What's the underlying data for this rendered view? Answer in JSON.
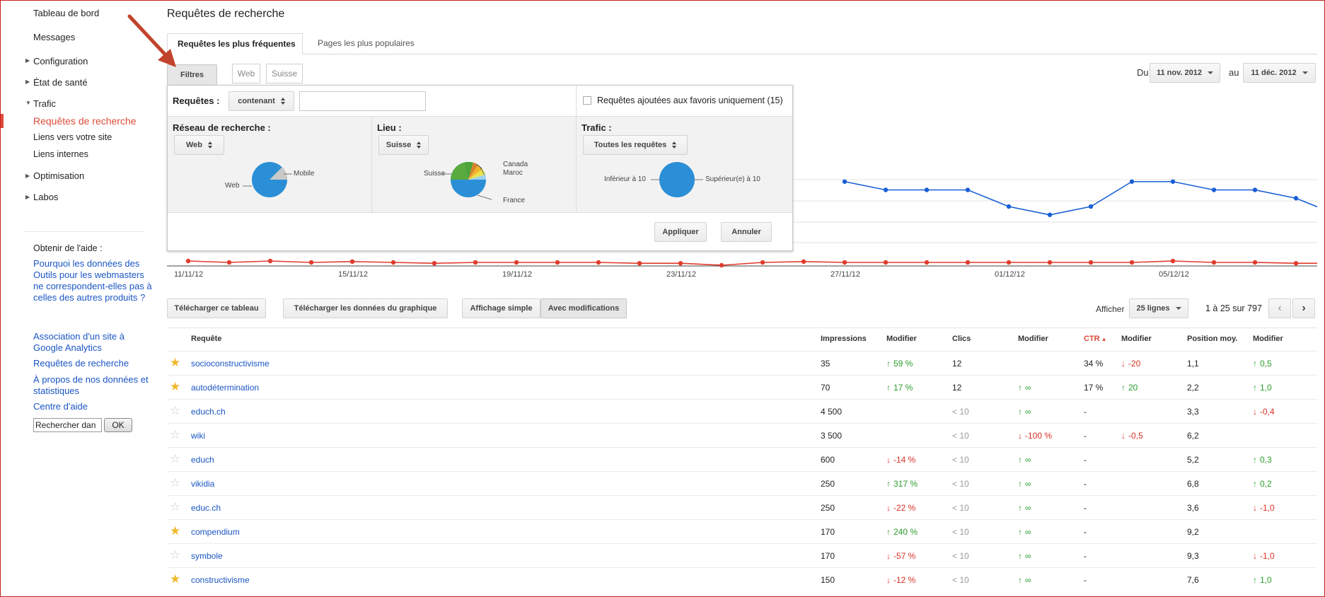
{
  "sidebar": {
    "items": [
      {
        "label": "Tableau de bord"
      },
      {
        "label": "Messages"
      },
      {
        "label": "Configuration"
      },
      {
        "label": "État de santé"
      },
      {
        "label": "Trafic"
      },
      {
        "label": "Optimisation"
      },
      {
        "label": "Labos"
      }
    ],
    "trafic_sub": [
      {
        "label": "Requêtes de recherche",
        "active": true
      },
      {
        "label": "Liens vers votre site"
      },
      {
        "label": "Liens internes"
      }
    ],
    "help": {
      "heading": "Obtenir de l'aide :",
      "links": [
        "Pourquoi les données des Outils pour les webmasters ne correspondent-elles pas à celles des autres produits ?",
        "Association d'un site à Google Analytics",
        "Requêtes de recherche",
        "À propos de nos données et statistiques",
        "Centre d'aide"
      ],
      "search_value": "Rechercher dan",
      "ok_label": "OK"
    }
  },
  "page_title": "Requêtes de recherche",
  "tabs": [
    {
      "label": "Requêtes les plus fréquentes",
      "active": true
    },
    {
      "label": "Pages les plus populaires",
      "active": false
    }
  ],
  "filters": {
    "button_label": "Filtres",
    "chip_web": "Web",
    "chip_suisse": "Suisse"
  },
  "date_range": {
    "from_label": "Du",
    "from": "11 nov. 2012",
    "to_label": "au",
    "to": "11 déc. 2012"
  },
  "filter_panel": {
    "requetes_label": "Requêtes :",
    "requetes_select": "contenant",
    "requetes_input": "",
    "favorites_label": "Requêtes ajoutées aux favoris uniquement (15)",
    "reseau": {
      "label": "Réseau de recherche :",
      "select": "Web",
      "pie_labels": [
        "Web",
        "Mobile"
      ]
    },
    "lieu": {
      "label": "Lieu :",
      "select": "Suisse",
      "pie_labels": [
        "Suisse",
        "Canada",
        "Maroc",
        "France"
      ]
    },
    "trafic": {
      "label": "Trafic :",
      "select": "Toutes les requêtes",
      "pie_labels": [
        "Inférieur à 10",
        "Supérieur(e) à 10"
      ]
    },
    "apply_label": "Appliquer",
    "cancel_label": "Annuler"
  },
  "chart_data": {
    "type": "line",
    "x_tick_labels": [
      "11/11/12",
      "15/11/12",
      "19/11/12",
      "23/11/12",
      "27/11/12",
      "01/12/12",
      "05/12/12"
    ],
    "series": [
      {
        "color": "#1a5fd6",
        "values": [
          null,
          null,
          null,
          null,
          null,
          null,
          null,
          null,
          null,
          null,
          null,
          null,
          null,
          null,
          null,
          null,
          3.2,
          3.0,
          3.0,
          3.0,
          2.6,
          2.4,
          2.6,
          3.2,
          3.2,
          3.0,
          3.0,
          2.8,
          2.4
        ]
      },
      {
        "color": "#e03b2c",
        "values": [
          1.1,
          1.05,
          1.1,
          1.05,
          1.08,
          1.05,
          1.02,
          1.05,
          1.05,
          1.05,
          1.05,
          1.02,
          1.02,
          0.95,
          1.05,
          1.08,
          1.05,
          1.05,
          1.05,
          1.05,
          1.05,
          1.05,
          1.05,
          1.05,
          1.1,
          1.05,
          1.05,
          1.02,
          1.02
        ]
      }
    ]
  },
  "toolbar": {
    "download_table": "Télécharger ce tableau",
    "download_chart": "Télécharger les données du graphique",
    "simple_view": "Affichage simple",
    "with_changes": "Avec modifications",
    "show_label": "Afficher",
    "rows_select": "25 lignes",
    "pagination": "1 à 25 sur 797"
  },
  "table": {
    "headers": [
      "Requête",
      "Impressions",
      "Modifier",
      "Clics",
      "Modifier",
      "CTR",
      "Modifier",
      "Position moy.",
      "Modifier"
    ],
    "rows": [
      {
        "star": true,
        "query": "socioconstructivisme",
        "impressions": "35",
        "imp_change": "59 %",
        "imp_dir": "up",
        "clicks": "12",
        "clicks_change": "",
        "clicks_dir": "",
        "ctr": "34 %",
        "ctr_change": "-20",
        "ctr_dir": "down",
        "position": "1,1",
        "pos_change": "0,5",
        "pos_dir": "up"
      },
      {
        "star": true,
        "query": "autodétermination",
        "impressions": "70",
        "imp_change": "17 %",
        "imp_dir": "up",
        "clicks": "12",
        "clicks_change": "∞",
        "clicks_dir": "up",
        "ctr": "17 %",
        "ctr_change": "20",
        "ctr_dir": "up",
        "position": "2,2",
        "pos_change": "1,0",
        "pos_dir": "up"
      },
      {
        "star": false,
        "query": "educh.ch",
        "impressions": "4 500",
        "imp_change": "",
        "imp_dir": "",
        "clicks": "< 10",
        "clicks_change": "∞",
        "clicks_dir": "up",
        "ctr": "-",
        "ctr_change": "",
        "ctr_dir": "",
        "position": "3,3",
        "pos_change": "-0,4",
        "pos_dir": "down"
      },
      {
        "star": false,
        "query": "wiki",
        "impressions": "3 500",
        "imp_change": "",
        "imp_dir": "",
        "clicks": "< 10",
        "clicks_change": "-100 %",
        "clicks_dir": "down",
        "ctr": "-",
        "ctr_change": "-0,5",
        "ctr_dir": "down",
        "position": "6,2",
        "pos_change": "",
        "pos_dir": ""
      },
      {
        "star": false,
        "query": "educh",
        "impressions": "600",
        "imp_change": "-14 %",
        "imp_dir": "down",
        "clicks": "< 10",
        "clicks_change": "∞",
        "clicks_dir": "up",
        "ctr": "-",
        "ctr_change": "",
        "ctr_dir": "",
        "position": "5,2",
        "pos_change": "0,3",
        "pos_dir": "up"
      },
      {
        "star": false,
        "query": "vikidia",
        "impressions": "250",
        "imp_change": "317 %",
        "imp_dir": "up",
        "clicks": "< 10",
        "clicks_change": "∞",
        "clicks_dir": "up",
        "ctr": "-",
        "ctr_change": "",
        "ctr_dir": "",
        "position": "6,8",
        "pos_change": "0,2",
        "pos_dir": "up"
      },
      {
        "star": false,
        "query": "educ.ch",
        "impressions": "250",
        "imp_change": "-22 %",
        "imp_dir": "down",
        "clicks": "< 10",
        "clicks_change": "∞",
        "clicks_dir": "up",
        "ctr": "-",
        "ctr_change": "",
        "ctr_dir": "",
        "position": "3,6",
        "pos_change": "-1,0",
        "pos_dir": "down"
      },
      {
        "star": true,
        "query": "compendium",
        "impressions": "170",
        "imp_change": "240 %",
        "imp_dir": "up",
        "clicks": "< 10",
        "clicks_change": "∞",
        "clicks_dir": "up",
        "ctr": "-",
        "ctr_change": "",
        "ctr_dir": "",
        "position": "9,2",
        "pos_change": "",
        "pos_dir": ""
      },
      {
        "star": false,
        "query": "symbole",
        "impressions": "170",
        "imp_change": "-57 %",
        "imp_dir": "down",
        "clicks": "< 10",
        "clicks_change": "∞",
        "clicks_dir": "up",
        "ctr": "-",
        "ctr_change": "",
        "ctr_dir": "",
        "position": "9,3",
        "pos_change": "-1,0",
        "pos_dir": "down"
      },
      {
        "star": true,
        "query": "constructivisme",
        "impressions": "150",
        "imp_change": "-12 %",
        "imp_dir": "down",
        "clicks": "< 10",
        "clicks_change": "∞",
        "clicks_dir": "up",
        "ctr": "-",
        "ctr_change": "",
        "ctr_dir": "",
        "position": "7,6",
        "pos_change": "1,0",
        "pos_dir": "up"
      }
    ]
  },
  "colors": {
    "link": "#1a55c4",
    "active_nav": "#dd4b39",
    "up": "#2a9d2a",
    "down": "#d93025",
    "star": "#f1b92c",
    "arrow_annotation": "#c2432b"
  }
}
